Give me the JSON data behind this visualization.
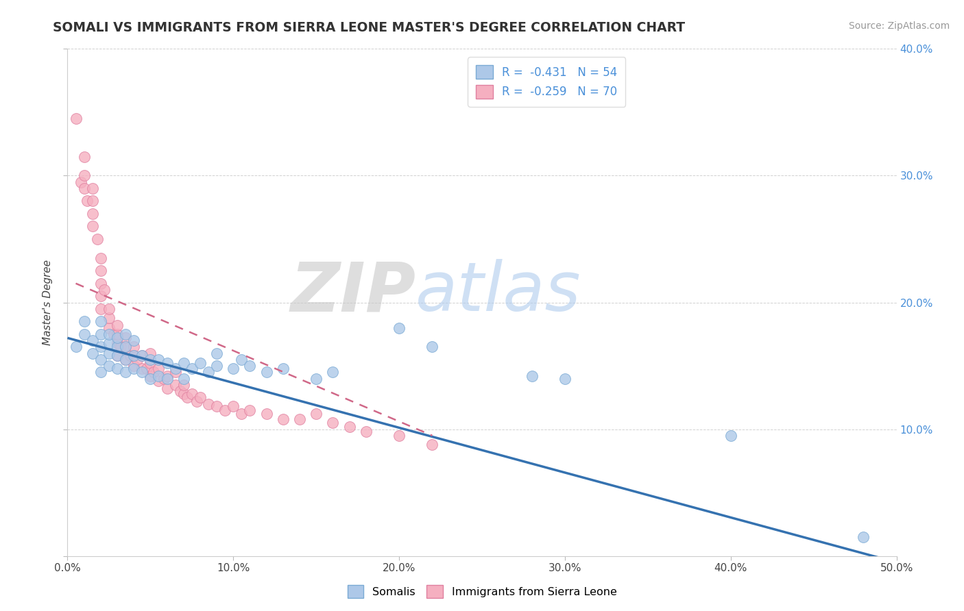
{
  "title": "SOMALI VS IMMIGRANTS FROM SIERRA LEONE MASTER'S DEGREE CORRELATION CHART",
  "source": "Source: ZipAtlas.com",
  "ylabel": "Master's Degree",
  "xlim": [
    0.0,
    0.5
  ],
  "ylim": [
    0.0,
    0.4
  ],
  "xticks": [
    0.0,
    0.1,
    0.2,
    0.3,
    0.4,
    0.5
  ],
  "yticks": [
    0.0,
    0.1,
    0.2,
    0.3,
    0.4
  ],
  "xticklabels": [
    "0.0%",
    "10.0%",
    "20.0%",
    "30.0%",
    "40.0%",
    "50.0%"
  ],
  "legend_label1": "Somalis",
  "legend_label2": "Immigrants from Sierra Leone",
  "R1": -0.431,
  "N1": 54,
  "R2": -0.259,
  "N2": 70,
  "color_somali": "#adc8e8",
  "color_sierra": "#f5afc0",
  "edge_somali": "#7aaad4",
  "edge_sierra": "#e080a0",
  "line_color_somali": "#3572b0",
  "line_color_sierra": "#d06888",
  "watermark_zip": "ZIP",
  "watermark_atlas": "atlas",
  "somali_x": [
    0.005,
    0.01,
    0.01,
    0.015,
    0.015,
    0.02,
    0.02,
    0.02,
    0.02,
    0.02,
    0.025,
    0.025,
    0.025,
    0.025,
    0.03,
    0.03,
    0.03,
    0.03,
    0.035,
    0.035,
    0.035,
    0.035,
    0.04,
    0.04,
    0.04,
    0.045,
    0.045,
    0.05,
    0.05,
    0.055,
    0.055,
    0.06,
    0.06,
    0.065,
    0.07,
    0.07,
    0.075,
    0.08,
    0.085,
    0.09,
    0.09,
    0.1,
    0.105,
    0.11,
    0.12,
    0.13,
    0.15,
    0.16,
    0.2,
    0.22,
    0.28,
    0.3,
    0.4,
    0.48
  ],
  "somali_y": [
    0.165,
    0.175,
    0.185,
    0.16,
    0.17,
    0.145,
    0.155,
    0.165,
    0.175,
    0.185,
    0.15,
    0.16,
    0.168,
    0.175,
    0.148,
    0.158,
    0.165,
    0.172,
    0.145,
    0.155,
    0.165,
    0.175,
    0.148,
    0.158,
    0.17,
    0.145,
    0.158,
    0.14,
    0.155,
    0.142,
    0.155,
    0.14,
    0.152,
    0.148,
    0.14,
    0.152,
    0.148,
    0.152,
    0.145,
    0.15,
    0.16,
    0.148,
    0.155,
    0.15,
    0.145,
    0.148,
    0.14,
    0.145,
    0.18,
    0.165,
    0.142,
    0.14,
    0.095,
    0.015
  ],
  "sierra_x": [
    0.005,
    0.008,
    0.01,
    0.01,
    0.01,
    0.012,
    0.015,
    0.015,
    0.015,
    0.015,
    0.018,
    0.02,
    0.02,
    0.02,
    0.02,
    0.02,
    0.022,
    0.025,
    0.025,
    0.025,
    0.028,
    0.03,
    0.03,
    0.03,
    0.03,
    0.032,
    0.035,
    0.035,
    0.035,
    0.038,
    0.04,
    0.04,
    0.04,
    0.042,
    0.045,
    0.045,
    0.048,
    0.05,
    0.05,
    0.05,
    0.052,
    0.055,
    0.055,
    0.058,
    0.06,
    0.06,
    0.065,
    0.065,
    0.068,
    0.07,
    0.07,
    0.072,
    0.075,
    0.078,
    0.08,
    0.085,
    0.09,
    0.095,
    0.1,
    0.105,
    0.11,
    0.12,
    0.13,
    0.14,
    0.15,
    0.16,
    0.17,
    0.18,
    0.2,
    0.22
  ],
  "sierra_y": [
    0.345,
    0.295,
    0.29,
    0.3,
    0.315,
    0.28,
    0.26,
    0.27,
    0.28,
    0.29,
    0.25,
    0.195,
    0.205,
    0.215,
    0.225,
    0.235,
    0.21,
    0.18,
    0.188,
    0.195,
    0.175,
    0.158,
    0.168,
    0.175,
    0.182,
    0.165,
    0.155,
    0.165,
    0.172,
    0.158,
    0.15,
    0.158,
    0.165,
    0.155,
    0.148,
    0.158,
    0.148,
    0.142,
    0.152,
    0.16,
    0.145,
    0.138,
    0.148,
    0.14,
    0.132,
    0.142,
    0.135,
    0.145,
    0.13,
    0.128,
    0.135,
    0.125,
    0.128,
    0.122,
    0.125,
    0.12,
    0.118,
    0.115,
    0.118,
    0.112,
    0.115,
    0.112,
    0.108,
    0.108,
    0.112,
    0.105,
    0.102,
    0.098,
    0.095,
    0.088
  ],
  "blue_line_x": [
    0.0,
    0.5
  ],
  "blue_line_y": [
    0.172,
    -0.005
  ],
  "pink_line_x": [
    0.005,
    0.22
  ],
  "pink_line_y": [
    0.215,
    0.095
  ]
}
